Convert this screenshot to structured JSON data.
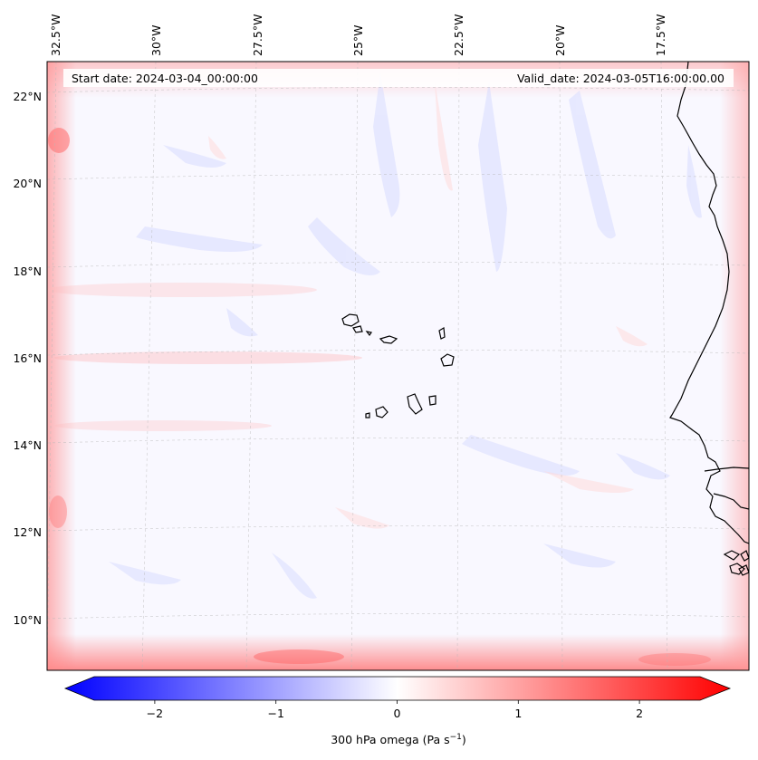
{
  "map": {
    "start_date": "Start date: 2024-03-04_00:00:00",
    "valid_date": "Valid_date: 2024-03-05T16:00:00.00",
    "lon_labels": [
      "32.5°W",
      "30°W",
      "27.5°W",
      "25°W",
      "22.5°W",
      "20°W",
      "17.5°W"
    ],
    "lat_labels": [
      "22°N",
      "20°N",
      "18°N",
      "16°N",
      "14°N",
      "12°N",
      "10°N"
    ],
    "colors": {
      "negative": "#0000ff",
      "zero": "#ffffff",
      "positive": "#ff0000",
      "coastline": "#000000"
    }
  },
  "colorbar": {
    "label_prefix": "300 hPa omega (Pa s",
    "label_exponent": "−1",
    "label_suffix": ")",
    "tick_labels": [
      "−2",
      "−1",
      "0",
      "1",
      "2"
    ],
    "tick_values": [
      -2,
      -1,
      0,
      1,
      2
    ],
    "range": [
      -2.6,
      2.6
    ]
  }
}
